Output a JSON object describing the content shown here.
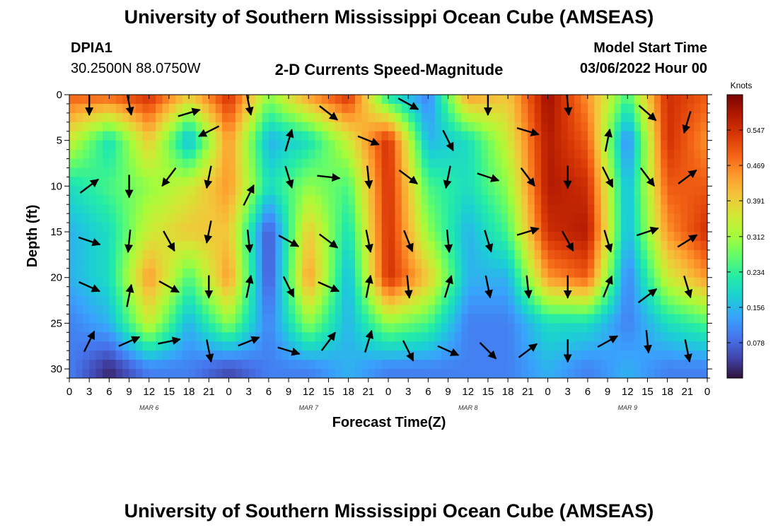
{
  "header": {
    "title": "University of Southern Mississippi Ocean Cube (AMSEAS)",
    "station_id": "DPIA1",
    "station_coords": "30.2500N  88.0750W",
    "chart_title": "2-D Currents Speed-Magnitude",
    "model_start_label": "Model Start Time",
    "model_start_value": "03/06/2022 Hour 00"
  },
  "footer": {
    "title": "University of Southern Mississippi Ocean Cube (AMSEAS)"
  },
  "colors": {
    "scale": [
      "#30123b",
      "#4145ab",
      "#4675ed",
      "#39a2fc",
      "#1bcfd4",
      "#24eca6",
      "#61fc6c",
      "#a4fc3b",
      "#d1e834",
      "#f3c63a",
      "#fe9b2d",
      "#f36315",
      "#d93806",
      "#b11901",
      "#7a0402"
    ]
  },
  "chart_data": {
    "type": "heatmap",
    "title": "2-D Currents Speed-Magnitude",
    "xlabel": "Forecast Time(Z)",
    "ylabel": "Depth (ft)",
    "xlim": [
      0,
      96
    ],
    "ylim": [
      0,
      31
    ],
    "x_tick_labels": [
      "0",
      "3",
      "6",
      "9",
      "12",
      "15",
      "18",
      "21",
      "0",
      "3",
      "6",
      "9",
      "12",
      "15",
      "18",
      "21",
      "0",
      "3",
      "6",
      "9",
      "12",
      "15",
      "18",
      "21",
      "0",
      "3",
      "6",
      "9",
      "12",
      "15",
      "18",
      "21",
      "0"
    ],
    "y_ticks": [
      0,
      5,
      10,
      15,
      20,
      25,
      30
    ],
    "day_labels": [
      {
        "x": 12,
        "label": "MAR 6"
      },
      {
        "x": 36,
        "label": "MAR 7"
      },
      {
        "x": 60,
        "label": "MAR 8"
      },
      {
        "x": 84,
        "label": "MAR 9"
      }
    ],
    "colorbar": {
      "label": "Knots",
      "min": 0,
      "max": 0.625,
      "ticks": [
        "0.078",
        "0.156",
        "0.234",
        "0.312",
        "0.391",
        "0.469",
        "0.547"
      ]
    },
    "depths": [
      0,
      5,
      10,
      15,
      20,
      25,
      30
    ],
    "times": [
      0,
      6,
      12,
      18,
      24,
      30,
      36,
      42,
      48,
      54,
      60,
      66,
      72,
      78,
      84,
      90,
      96
    ],
    "speed_knots": [
      [
        0.5,
        0.5,
        0.55,
        0.4,
        0.55,
        0.3,
        0.45,
        0.55,
        0.2,
        0.1,
        0.45,
        0.4,
        0.6,
        0.45,
        0.25,
        0.55,
        0.5
      ],
      [
        0.35,
        0.2,
        0.4,
        0.15,
        0.45,
        0.15,
        0.2,
        0.35,
        0.55,
        0.15,
        0.2,
        0.35,
        0.58,
        0.5,
        0.1,
        0.55,
        0.45
      ],
      [
        0.2,
        0.25,
        0.3,
        0.35,
        0.45,
        0.2,
        0.3,
        0.25,
        0.55,
        0.25,
        0.2,
        0.3,
        0.58,
        0.55,
        0.15,
        0.5,
        0.5
      ],
      [
        0.15,
        0.2,
        0.35,
        0.4,
        0.4,
        0.05,
        0.4,
        0.2,
        0.55,
        0.3,
        0.15,
        0.25,
        0.55,
        0.58,
        0.15,
        0.45,
        0.55
      ],
      [
        0.15,
        0.2,
        0.45,
        0.25,
        0.45,
        0.05,
        0.45,
        0.15,
        0.55,
        0.4,
        0.15,
        0.15,
        0.45,
        0.5,
        0.1,
        0.35,
        0.45
      ],
      [
        0.1,
        0.15,
        0.35,
        0.15,
        0.3,
        0.1,
        0.3,
        0.15,
        0.3,
        0.25,
        0.1,
        0.1,
        0.2,
        0.2,
        0.1,
        0.2,
        0.25
      ],
      [
        0.1,
        0.02,
        0.1,
        0.1,
        0.05,
        0.1,
        0.1,
        0.15,
        0.1,
        0.1,
        0.1,
        0.1,
        0.15,
        0.1,
        0.15,
        0.1,
        0.1
      ]
    ],
    "vectors": [
      {
        "t": 3,
        "d": 1,
        "u": 0.0,
        "v": -1.0
      },
      {
        "t": 9,
        "d": 1,
        "u": 0.2,
        "v": -1.0
      },
      {
        "t": 18,
        "d": 2,
        "u": 1.0,
        "v": 0.3
      },
      {
        "t": 21,
        "d": 4,
        "u": -1.0,
        "v": -0.5
      },
      {
        "t": 27,
        "d": 1,
        "u": 0.2,
        "v": -1.0
      },
      {
        "t": 33,
        "d": 5,
        "u": 0.3,
        "v": 1.0
      },
      {
        "t": 39,
        "d": 2,
        "u": 0.9,
        "v": -0.7
      },
      {
        "t": 45,
        "d": 5,
        "u": 1.0,
        "v": -0.4
      },
      {
        "t": 51,
        "d": 1,
        "u": 0.9,
        "v": -0.5
      },
      {
        "t": 57,
        "d": 5,
        "u": 0.5,
        "v": -1.0
      },
      {
        "t": 63,
        "d": 1,
        "u": 0.0,
        "v": -1.0
      },
      {
        "t": 69,
        "d": 4,
        "u": 1.0,
        "v": -0.3
      },
      {
        "t": 75,
        "d": 1,
        "u": 0.1,
        "v": -1.0
      },
      {
        "t": 81,
        "d": 5,
        "u": 0.2,
        "v": 1.0
      },
      {
        "t": 87,
        "d": 2,
        "u": 0.8,
        "v": -0.7
      },
      {
        "t": 93,
        "d": 3,
        "u": -0.3,
        "v": -1.0
      },
      {
        "t": 3,
        "d": 10,
        "u": 0.8,
        "v": 0.6
      },
      {
        "t": 9,
        "d": 10,
        "u": 0.0,
        "v": -1.0
      },
      {
        "t": 15,
        "d": 9,
        "u": -0.6,
        "v": -0.8
      },
      {
        "t": 21,
        "d": 9,
        "u": -0.2,
        "v": -1.0
      },
      {
        "t": 27,
        "d": 11,
        "u": 0.5,
        "v": 1.0
      },
      {
        "t": 33,
        "d": 9,
        "u": 0.3,
        "v": -1.0
      },
      {
        "t": 39,
        "d": 9,
        "u": 0.9,
        "v": -0.1
      },
      {
        "t": 45,
        "d": 9,
        "u": 0.1,
        "v": -1.0
      },
      {
        "t": 51,
        "d": 9,
        "u": 0.8,
        "v": -0.6
      },
      {
        "t": 57,
        "d": 9,
        "u": -0.2,
        "v": -1.0
      },
      {
        "t": 63,
        "d": 9,
        "u": 0.9,
        "v": -0.3
      },
      {
        "t": 69,
        "d": 9,
        "u": 0.6,
        "v": -0.8
      },
      {
        "t": 75,
        "d": 9,
        "u": 0.0,
        "v": -1.0
      },
      {
        "t": 81,
        "d": 9,
        "u": 0.5,
        "v": -1.0
      },
      {
        "t": 87,
        "d": 9,
        "u": 0.6,
        "v": -0.8
      },
      {
        "t": 93,
        "d": 9,
        "u": 0.8,
        "v": 0.6
      },
      {
        "t": 3,
        "d": 16,
        "u": 0.9,
        "v": -0.3
      },
      {
        "t": 9,
        "d": 16,
        "u": -0.1,
        "v": -1.0
      },
      {
        "t": 15,
        "d": 16,
        "u": 0.5,
        "v": -0.9
      },
      {
        "t": 21,
        "d": 15,
        "u": -0.2,
        "v": -1.0
      },
      {
        "t": 27,
        "d": 16,
        "u": 0.1,
        "v": -1.0
      },
      {
        "t": 33,
        "d": 16,
        "u": 0.9,
        "v": -0.5
      },
      {
        "t": 39,
        "d": 16,
        "u": 0.8,
        "v": -0.6
      },
      {
        "t": 45,
        "d": 16,
        "u": 0.2,
        "v": -1.0
      },
      {
        "t": 51,
        "d": 16,
        "u": 0.4,
        "v": -1.0
      },
      {
        "t": 57,
        "d": 16,
        "u": 0.1,
        "v": -1.0
      },
      {
        "t": 63,
        "d": 16,
        "u": 0.3,
        "v": -1.0
      },
      {
        "t": 69,
        "d": 15,
        "u": 1.0,
        "v": 0.3
      },
      {
        "t": 75,
        "d": 16,
        "u": 0.5,
        "v": -0.9
      },
      {
        "t": 81,
        "d": 16,
        "u": 0.3,
        "v": -1.0
      },
      {
        "t": 87,
        "d": 15,
        "u": 0.9,
        "v": 0.3
      },
      {
        "t": 93,
        "d": 16,
        "u": 0.8,
        "v": 0.5
      },
      {
        "t": 3,
        "d": 21,
        "u": 0.9,
        "v": -0.4
      },
      {
        "t": 9,
        "d": 22,
        "u": 0.2,
        "v": 1.0
      },
      {
        "t": 15,
        "d": 21,
        "u": 0.9,
        "v": -0.5
      },
      {
        "t": 21,
        "d": 21,
        "u": 0.0,
        "v": -1.0
      },
      {
        "t": 27,
        "d": 21,
        "u": 0.2,
        "v": 1.0
      },
      {
        "t": 33,
        "d": 21,
        "u": 0.5,
        "v": -1.0
      },
      {
        "t": 39,
        "d": 21,
        "u": 0.9,
        "v": -0.4
      },
      {
        "t": 45,
        "d": 21,
        "u": 0.2,
        "v": 1.0
      },
      {
        "t": 51,
        "d": 21,
        "u": 0.1,
        "v": -1.0
      },
      {
        "t": 57,
        "d": 21,
        "u": 0.3,
        "v": 1.0
      },
      {
        "t": 63,
        "d": 21,
        "u": 0.2,
        "v": -1.0
      },
      {
        "t": 69,
        "d": 21,
        "u": 0.1,
        "v": -1.0
      },
      {
        "t": 75,
        "d": 21,
        "u": 0.0,
        "v": -1.0
      },
      {
        "t": 81,
        "d": 21,
        "u": 0.4,
        "v": 1.0
      },
      {
        "t": 87,
        "d": 22,
        "u": 0.8,
        "v": 0.6
      },
      {
        "t": 93,
        "d": 21,
        "u": 0.3,
        "v": -1.0
      },
      {
        "t": 3,
        "d": 27,
        "u": 0.5,
        "v": 1.0
      },
      {
        "t": 9,
        "d": 27,
        "u": 0.9,
        "v": 0.4
      },
      {
        "t": 15,
        "d": 27,
        "u": 1.0,
        "v": 0.2
      },
      {
        "t": 21,
        "d": 28,
        "u": 0.2,
        "v": -1.0
      },
      {
        "t": 27,
        "d": 27,
        "u": 1.0,
        "v": 0.4
      },
      {
        "t": 33,
        "d": 28,
        "u": 1.0,
        "v": -0.3
      },
      {
        "t": 39,
        "d": 27,
        "u": 0.6,
        "v": 0.8
      },
      {
        "t": 45,
        "d": 27,
        "u": 0.3,
        "v": 1.0
      },
      {
        "t": 51,
        "d": 28,
        "u": 0.5,
        "v": -1.0
      },
      {
        "t": 57,
        "d": 28,
        "u": 0.9,
        "v": -0.4
      },
      {
        "t": 63,
        "d": 28,
        "u": 0.7,
        "v": -0.7
      },
      {
        "t": 69,
        "d": 28,
        "u": 0.8,
        "v": 0.6
      },
      {
        "t": 75,
        "d": 28,
        "u": 0.0,
        "v": -1.0
      },
      {
        "t": 81,
        "d": 27,
        "u": 0.9,
        "v": 0.5
      },
      {
        "t": 87,
        "d": 27,
        "u": 0.1,
        "v": -1.0
      },
      {
        "t": 93,
        "d": 28,
        "u": 0.2,
        "v": -1.0
      }
    ]
  }
}
